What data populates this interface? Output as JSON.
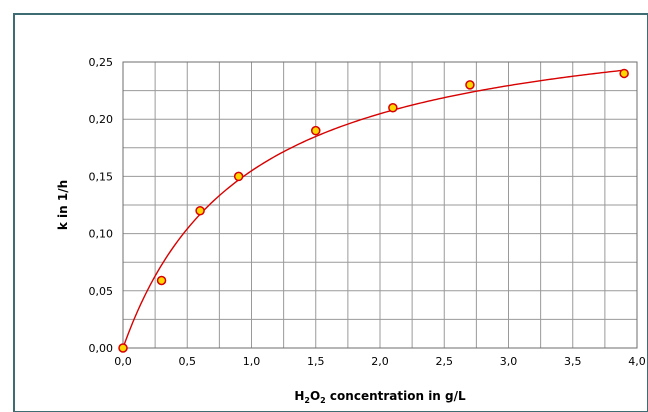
{
  "chart_data": {
    "type": "scatter",
    "title": "",
    "xlabel_parts": [
      "H",
      "2",
      "O",
      "2",
      " concentration in g/L"
    ],
    "ylabel": "k in 1/h",
    "xlim": [
      0,
      4
    ],
    "ylim": [
      0,
      0.25
    ],
    "x_ticks": [
      "0,0",
      "0,5",
      "1,0",
      "1,5",
      "2,0",
      "2,5",
      "3,0",
      "3,5",
      "4,0"
    ],
    "y_ticks": [
      "0,00",
      "0,05",
      "0,10",
      "0,15",
      "0,20",
      "0,25"
    ],
    "x_grid_step": 0.25,
    "y_grid_step": 0.025,
    "grid": true,
    "series": [
      {
        "type": "scatter",
        "x": [
          0,
          0.3,
          0.6,
          0.9,
          1.5,
          2.1,
          2.7,
          3.9
        ],
        "y": [
          0,
          0.059,
          0.12,
          0.15,
          0.19,
          0.21,
          0.23,
          0.24
        ],
        "marker_fill": "#ffd700",
        "marker_edge": "#d80000"
      }
    ],
    "fit_curve": {
      "form": "saturation",
      "color": "#d80000"
    }
  },
  "colors": {
    "frame": "#3f6b72",
    "grid": "#9a9a9a",
    "curve": "#d80000",
    "marker": "#ffd700"
  }
}
